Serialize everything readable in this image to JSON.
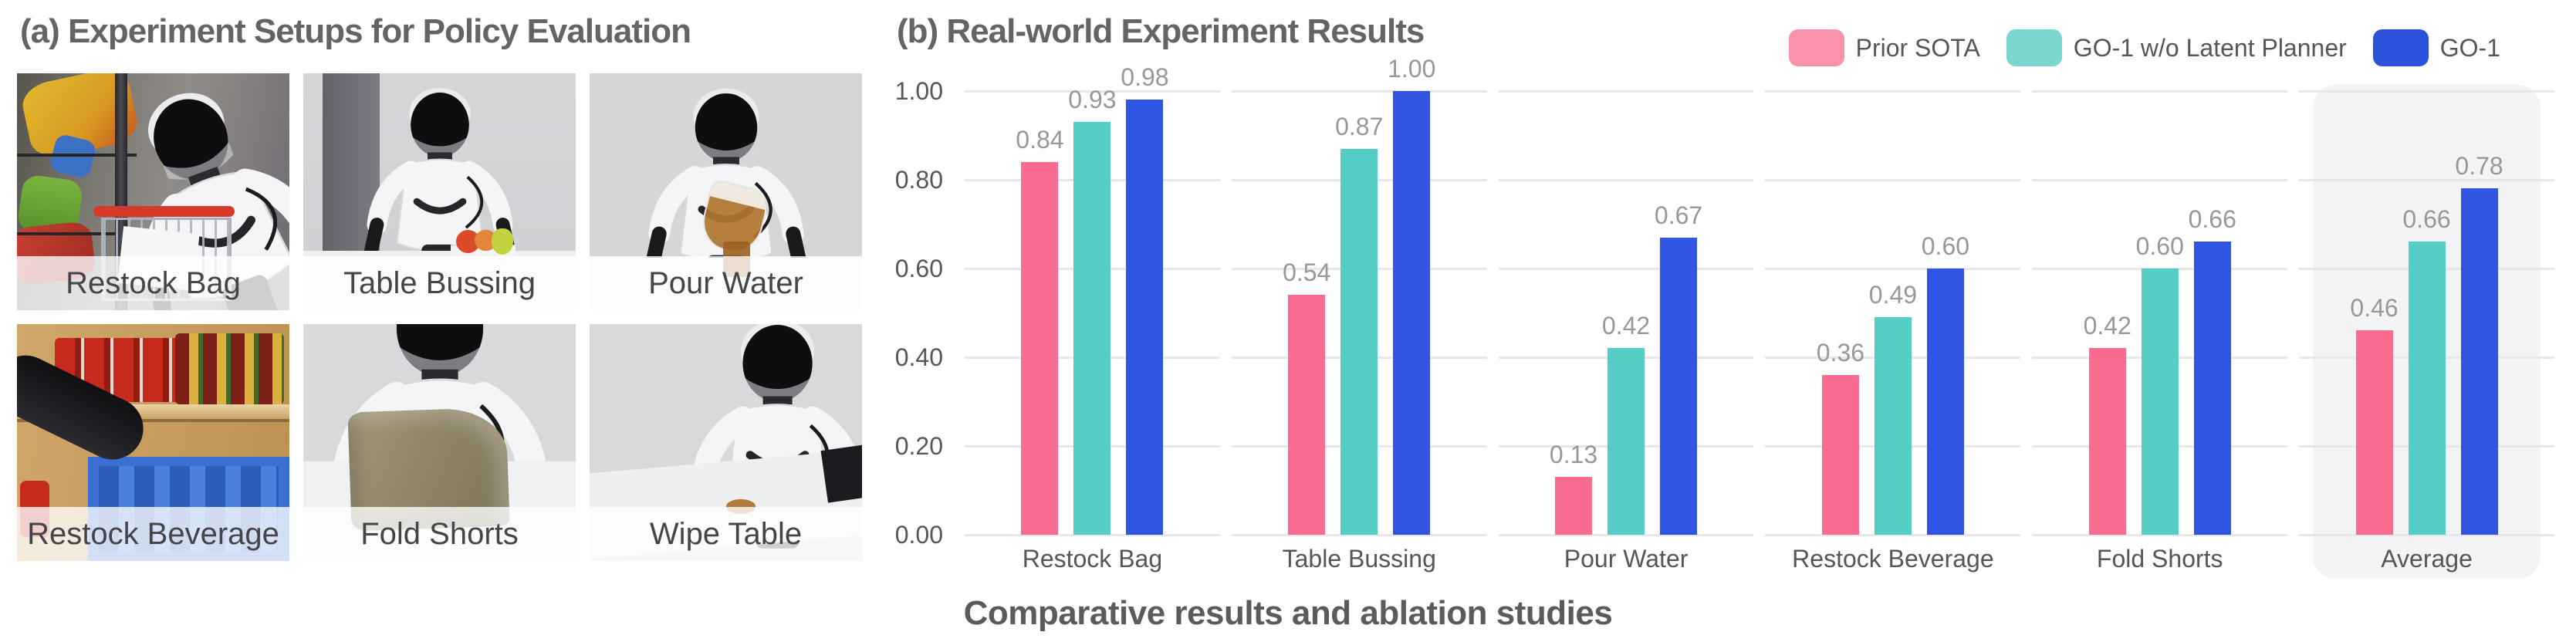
{
  "panel_a": {
    "title": "(a) Experiment Setups for Policy Evaluation",
    "photos": [
      {
        "label": "Restock Bag"
      },
      {
        "label": "Table Bussing"
      },
      {
        "label": "Pour Water"
      },
      {
        "label": "Restock Beverage"
      },
      {
        "label": "Fold Shorts"
      },
      {
        "label": "Wipe Table"
      }
    ]
  },
  "panel_b": {
    "title": "(b) Real-world Experiment Results",
    "caption": "Comparative results and ablation studies",
    "legend": [
      {
        "label": "Prior SOTA",
        "swatch_color": "#F993AB"
      },
      {
        "label": "GO-1 w/o Latent Planner",
        "swatch_color": "#7BD7CE"
      },
      {
        "label": "GO-1",
        "swatch_color": "#2C51DB"
      }
    ]
  },
  "chart_data": {
    "type": "bar",
    "title": "(b) Real-world Experiment Results",
    "categories": [
      "Restock Bag",
      "Table Bussing",
      "Pour Water",
      "Restock Beverage",
      "Fold Shorts",
      "Average"
    ],
    "series": [
      {
        "name": "Prior SOTA",
        "color": "#FA6C8F",
        "values": [
          0.84,
          0.54,
          0.13,
          0.36,
          0.42,
          0.46
        ]
      },
      {
        "name": "GO-1 w/o Latent Planner",
        "color": "#54CEC4",
        "values": [
          0.93,
          0.87,
          0.42,
          0.49,
          0.6,
          0.66
        ]
      },
      {
        "name": "GO-1",
        "color": "#2F55E2",
        "values": [
          0.98,
          1.0,
          0.67,
          0.6,
          0.66,
          0.78
        ]
      }
    ],
    "ylim": [
      0,
      1.0
    ],
    "yticks": [
      0,
      0.2,
      0.4,
      0.6,
      0.8,
      1.0
    ],
    "ytick_labels": [
      "0.00",
      "0.20",
      "0.40",
      "0.60",
      "0.80",
      "1.00"
    ],
    "grid": true,
    "grid_color": "#E7E7EA",
    "value_labels": true,
    "value_label_color": "#98989C",
    "axis_text_color": "#565659",
    "highlight_category": "Average",
    "highlight_color": "#F4F4F6",
    "legend_position": "top-right",
    "xlabel": "Comparative results and ablation studies",
    "ylabel": ""
  }
}
